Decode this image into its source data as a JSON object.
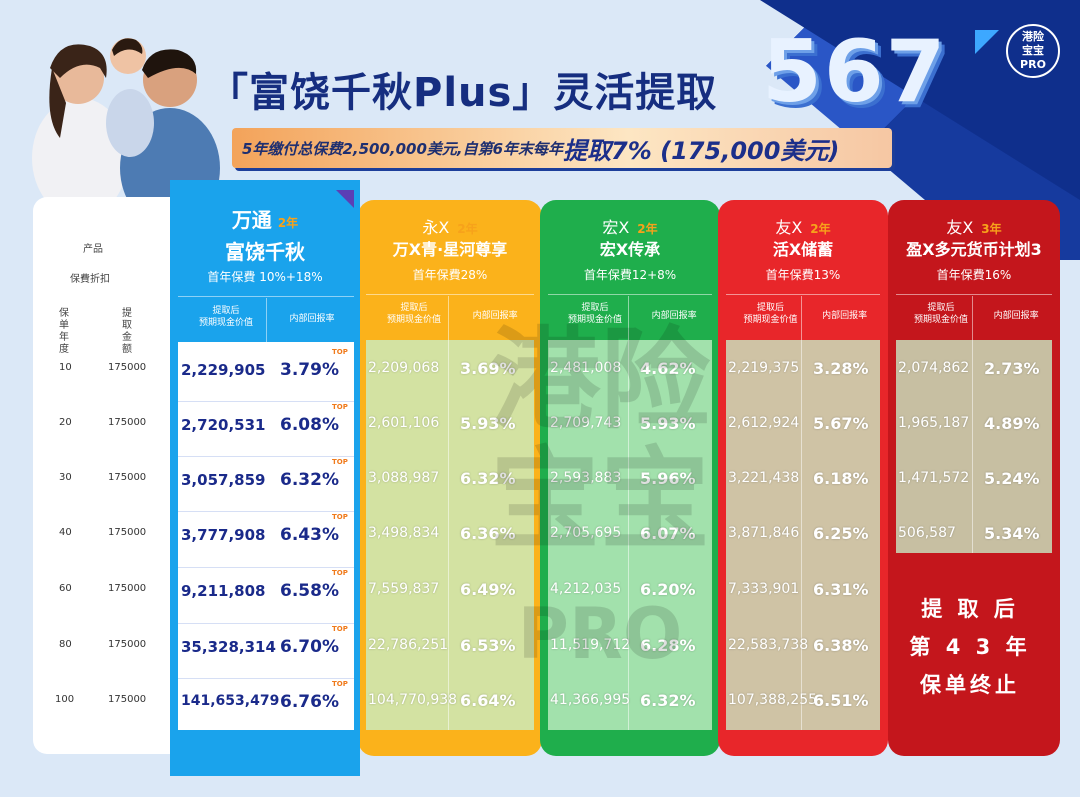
{
  "header": {
    "title": "「富饶千秋Plus」灵活提取",
    "number": "567",
    "subtitle_prefix": "5年缴付总保费2,500,000美元,自第6年末每年",
    "subtitle_highlight": "提取7% (175,000美元)",
    "logo_line1": "港险",
    "logo_line2": "宝宝",
    "logo_line3": "PRO"
  },
  "left_labels": {
    "product": "产品",
    "discount": "保費折扣",
    "policy_year": "保单年度",
    "withdraw_amount": "提取金额"
  },
  "rows": [
    {
      "year": "10",
      "amount": "175000"
    },
    {
      "year": "20",
      "amount": "175000"
    },
    {
      "year": "30",
      "amount": "175000"
    },
    {
      "year": "40",
      "amount": "175000"
    },
    {
      "year": "60",
      "amount": "175000"
    },
    {
      "year": "80",
      "amount": "175000"
    },
    {
      "year": "100",
      "amount": "175000"
    }
  ],
  "main_product": {
    "company": "万通",
    "years": "2年",
    "name": "富饶千秋",
    "discount": "首年保費 10%+18%",
    "col1": "提取后\n预期现金价值",
    "col2": "内部回报率",
    "top_label": "TOP",
    "values": [
      "2,229,905",
      "2,720,531",
      "3,057,859",
      "3,777,908",
      "9,211,808",
      "35,328,314",
      "141,653,479"
    ],
    "rates": [
      "3.79%",
      "6.08%",
      "6.32%",
      "6.43%",
      "6.58%",
      "6.70%",
      "6.76%"
    ]
  },
  "competitors": [
    {
      "company": "永X",
      "years": "2年",
      "name": "万X青·星河尊享",
      "discount": "首年保費28%",
      "col1": "提取后\n预期现金价值",
      "col2": "内部回报率",
      "color": "#fbb21b",
      "values": [
        "2,209,068",
        "2,601,106",
        "3,088,987",
        "3,498,834",
        "7,559,837",
        "22,786,251",
        "104,770,938"
      ],
      "rates": [
        "3.69%",
        "5.93%",
        "6.32%",
        "6.36%",
        "6.49%",
        "6.53%",
        "6.64%"
      ]
    },
    {
      "company": "宏X",
      "years": "2年",
      "name": "宏X传承",
      "discount": "首年保費12+8%",
      "col1": "提取后\n预期现金价值",
      "col2": "内部回报率",
      "color": "#1fae4c",
      "values": [
        "2,481,008",
        "2,709,743",
        "2,593,883",
        "2,705,695",
        "4,212,035",
        "11,519,712",
        "41,366,995"
      ],
      "rates": [
        "4.62%",
        "5.93%",
        "5.96%",
        "6.07%",
        "6.20%",
        "6.28%",
        "6.32%"
      ]
    },
    {
      "company": "友X",
      "years": "2年",
      "name": "活X储蓄",
      "discount": "首年保費13%",
      "col1": "提取后\n预期现金价值",
      "col2": "内部回报率",
      "color": "#e8262a",
      "values": [
        "2,219,375",
        "2,612,924",
        "3,221,438",
        "3,871,846",
        "7,333,901",
        "22,583,738",
        "107,388,255"
      ],
      "rates": [
        "3.28%",
        "5.67%",
        "6.18%",
        "6.25%",
        "6.31%",
        "6.38%",
        "6.51%"
      ]
    },
    {
      "company": "友X",
      "years": "3年",
      "name": "盈X多元货币计划3",
      "discount": "首年保費16%",
      "col1": "提取后\n预期现金价值",
      "col2": "内部回报率",
      "color": "#c4161c",
      "values": [
        "2,074,862",
        "1,965,187",
        "1,471,572",
        "506,587"
      ],
      "rates": [
        "2.73%",
        "4.89%",
        "5.24%",
        "5.34%"
      ]
    }
  ],
  "terminated_note": [
    "提 取 后",
    "第 4 3 年",
    "保单终止"
  ]
}
